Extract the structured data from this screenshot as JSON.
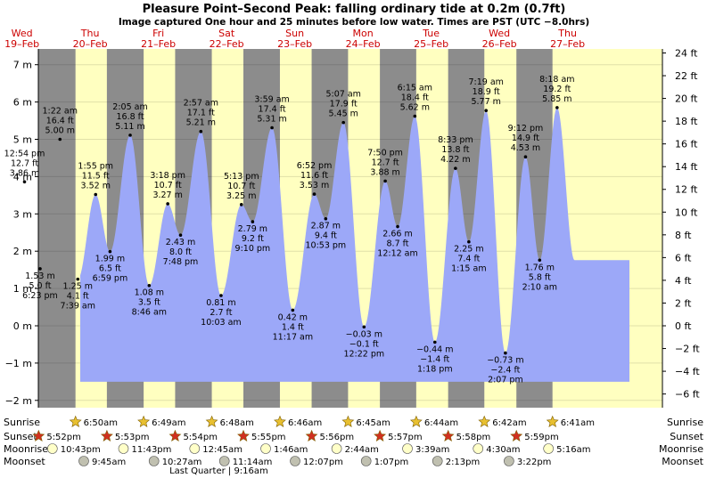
{
  "chart_data": {
    "type": "area",
    "title": "Pleasure Point–Second Peak: falling  ordinary tide at 0.2m (0.7ft)",
    "subtitle": "Image captured One hour and 25 minutes before low water. Times are PST (UTC −8.0hrs)",
    "days": [
      {
        "dow": "Wed",
        "date": "19–Feb"
      },
      {
        "dow": "Thu",
        "date": "20–Feb"
      },
      {
        "dow": "Fri",
        "date": "21–Feb"
      },
      {
        "dow": "Sat",
        "date": "22–Feb"
      },
      {
        "dow": "Sun",
        "date": "23–Feb"
      },
      {
        "dow": "Mon",
        "date": "24–Feb"
      },
      {
        "dow": "Tue",
        "date": "25–Feb"
      },
      {
        "dow": "Wed",
        "date": "26–Feb"
      },
      {
        "dow": "Thu",
        "date": "27–Feb"
      }
    ],
    "y_left_ticks": [
      "−2 m",
      "−1 m",
      "0 m",
      "1 m",
      "2 m",
      "3 m",
      "4 m",
      "5 m",
      "6 m",
      "7 m"
    ],
    "y_right_ticks": [
      "−6 ft",
      "−4 ft",
      "−2 ft",
      "0 ft",
      "2 ft",
      "4 ft",
      "6 ft",
      "8 ft",
      "10 ft",
      "12 ft",
      "14 ft",
      "16 ft",
      "18 ft",
      "20 ft",
      "22 ft",
      "24 ft"
    ],
    "ylim_m": [
      -2.2,
      7.4
    ],
    "tides": [
      {
        "day": 0,
        "time": "12:54 pm",
        "ft": "12.7 ft",
        "m": "3.86 m",
        "value": 3.86,
        "pos": "above"
      },
      {
        "day": 0,
        "time": "6:23 pm",
        "ft": "5.0 ft",
        "m": "1.53 m",
        "value": 1.53,
        "pos": "below"
      },
      {
        "day": 1,
        "time": "1:22 am",
        "ft": "16.4 ft",
        "m": "5.00 m",
        "value": 5.0,
        "pos": "above"
      },
      {
        "day": 1,
        "time": "7:39 am",
        "ft": "4.1 ft",
        "m": "1.25 m",
        "value": 1.25,
        "pos": "below"
      },
      {
        "day": 1,
        "time": "1:55 pm",
        "ft": "11.5 ft",
        "m": "3.52 m",
        "value": 3.52,
        "pos": "above"
      },
      {
        "day": 1,
        "time": "6:59 pm",
        "ft": "6.5 ft",
        "m": "1.99 m",
        "value": 1.99,
        "pos": "below"
      },
      {
        "day": 2,
        "time": "2:05 am",
        "ft": "16.8 ft",
        "m": "5.11 m",
        "value": 5.11,
        "pos": "above"
      },
      {
        "day": 2,
        "time": "8:46 am",
        "ft": "3.5 ft",
        "m": "1.08 m",
        "value": 1.08,
        "pos": "below"
      },
      {
        "day": 2,
        "time": "3:18 pm",
        "ft": "10.7 ft",
        "m": "3.27 m",
        "value": 3.27,
        "pos": "above"
      },
      {
        "day": 2,
        "time": "7:48 pm",
        "ft": "8.0 ft",
        "m": "2.43 m",
        "value": 2.43,
        "pos": "below"
      },
      {
        "day": 3,
        "time": "2:57 am",
        "ft": "17.1 ft",
        "m": "5.21 m",
        "value": 5.21,
        "pos": "above"
      },
      {
        "day": 3,
        "time": "10:03 am",
        "ft": "2.7 ft",
        "m": "0.81 m",
        "value": 0.81,
        "pos": "below"
      },
      {
        "day": 3,
        "time": "5:13 pm",
        "ft": "10.7 ft",
        "m": "3.25 m",
        "value": 3.25,
        "pos": "above"
      },
      {
        "day": 3,
        "time": "9:10 pm",
        "ft": "9.2 ft",
        "m": "2.79 m",
        "value": 2.79,
        "pos": "below"
      },
      {
        "day": 4,
        "time": "3:59 am",
        "ft": "17.4 ft",
        "m": "5.31 m",
        "value": 5.31,
        "pos": "above"
      },
      {
        "day": 4,
        "time": "11:17 am",
        "ft": "1.4 ft",
        "m": "0.42 m",
        "value": 0.42,
        "pos": "below"
      },
      {
        "day": 4,
        "time": "6:52 pm",
        "ft": "11.6 ft",
        "m": "3.53 m",
        "value": 3.53,
        "pos": "above"
      },
      {
        "day": 4,
        "time": "10:53 pm",
        "ft": "9.4 ft",
        "m": "2.87 m",
        "value": 2.87,
        "pos": "below"
      },
      {
        "day": 5,
        "time": "5:07 am",
        "ft": "17.9 ft",
        "m": "5.45 m",
        "value": 5.45,
        "pos": "above"
      },
      {
        "day": 5,
        "time": "12:22 pm",
        "ft": "−0.1 ft",
        "m": "−0.03 m",
        "value": -0.03,
        "pos": "below"
      },
      {
        "day": 5,
        "time": "7:50 pm",
        "ft": "12.7 ft",
        "m": "3.88 m",
        "value": 3.88,
        "pos": "above"
      },
      {
        "day": 6,
        "time": "12:12 am",
        "ft": "8.7 ft",
        "m": "2.66 m",
        "value": 2.66,
        "pos": "below"
      },
      {
        "day": 6,
        "time": "6:15 am",
        "ft": "18.4 ft",
        "m": "5.62 m",
        "value": 5.62,
        "pos": "above"
      },
      {
        "day": 6,
        "time": "1:18 pm",
        "ft": "−1.4 ft",
        "m": "−0.44 m",
        "value": -0.44,
        "pos": "below"
      },
      {
        "day": 6,
        "time": "8:33 pm",
        "ft": "13.8 ft",
        "m": "4.22 m",
        "value": 4.22,
        "pos": "above"
      },
      {
        "day": 7,
        "time": "1:15 am",
        "ft": "7.4 ft",
        "m": "2.25 m",
        "value": 2.25,
        "pos": "below"
      },
      {
        "day": 7,
        "time": "7:19 am",
        "ft": "18.9 ft",
        "m": "5.77 m",
        "value": 5.77,
        "pos": "above"
      },
      {
        "day": 7,
        "time": "2:07 pm",
        "ft": "−2.4 ft",
        "m": "−0.73 m",
        "value": -0.73,
        "pos": "below"
      },
      {
        "day": 7,
        "time": "9:12 pm",
        "ft": "14.9 ft",
        "m": "4.53 m",
        "value": 4.53,
        "pos": "above"
      },
      {
        "day": 8,
        "time": "2:10 am",
        "ft": "5.8 ft",
        "m": "1.76 m",
        "value": 1.76,
        "pos": "below"
      },
      {
        "day": 8,
        "time": "8:18 am",
        "ft": "19.2 ft",
        "m": "5.85 m",
        "value": 5.85,
        "pos": "above"
      }
    ],
    "sunrise": {
      "label": "Sunrise",
      "times": [
        "6:50am",
        "6:49am",
        "6:48am",
        "6:46am",
        "6:45am",
        "6:44am",
        "6:42am",
        "6:41am"
      ],
      "day_index": [
        1,
        2,
        3,
        4,
        5,
        6,
        7,
        8
      ]
    },
    "sunset": {
      "label": "Sunset",
      "times": [
        "5:52pm",
        "5:53pm",
        "5:54pm",
        "5:55pm",
        "5:56pm",
        "5:57pm",
        "5:58pm",
        "5:59pm"
      ],
      "day_index": [
        0,
        1,
        2,
        3,
        4,
        5,
        6,
        7
      ]
    },
    "moonrise": {
      "label": "Moonrise",
      "times": [
        "10:43pm",
        "11:43pm",
        "12:45am",
        "1:46am",
        "2:44am",
        "3:39am",
        "4:30am",
        "5:16am"
      ],
      "day_index": [
        0,
        1,
        3,
        4,
        5,
        6,
        7,
        8
      ]
    },
    "moonset": {
      "label": "Moonset",
      "times": [
        "9:45am",
        "10:27am",
        "11:14am",
        "12:07pm",
        "1:07pm",
        "2:13pm",
        "3:22pm"
      ],
      "day_index": [
        1,
        2,
        3,
        4,
        5,
        6,
        7
      ]
    },
    "moon_phase": "Last Quarter | 9:16am",
    "colors": {
      "day": "#ffffc0",
      "night": "#8c8c8c",
      "water": "#9ca8f8",
      "day_label": "#cc0000",
      "sunrise_star": "#e8c030",
      "sunset_star": "#d03020",
      "moonrise_disc": "#ffffc8",
      "moonset_disc": "#c0c0b0"
    }
  }
}
